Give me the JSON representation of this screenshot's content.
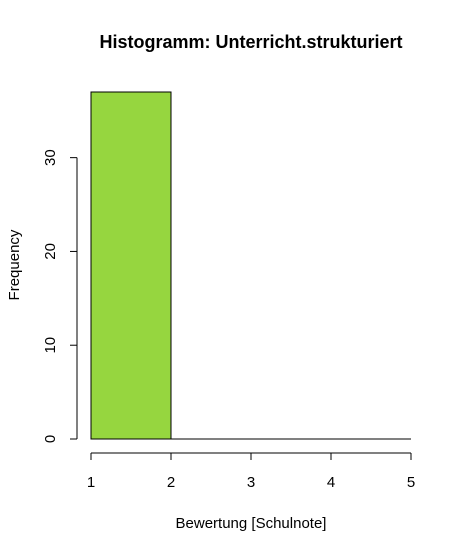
{
  "chart_data": {
    "type": "bar",
    "title": "Histogramm: Unterricht.strukturiert",
    "xlabel": "Bewertung [Schulnote]",
    "ylabel": "Frequency",
    "bins": [
      {
        "from": 1,
        "to": 2,
        "count": 37
      },
      {
        "from": 2,
        "to": 3,
        "count": 0
      },
      {
        "from": 3,
        "to": 4,
        "count": 0
      },
      {
        "from": 4,
        "to": 5,
        "count": 0
      }
    ],
    "xlim": [
      1,
      5
    ],
    "ylim": [
      0,
      37
    ],
    "xticks": [
      "1",
      "2",
      "3",
      "4",
      "5"
    ],
    "yticks": [
      "0",
      "10",
      "20",
      "30"
    ],
    "bar_color": "#96D63F",
    "grid": false
  }
}
